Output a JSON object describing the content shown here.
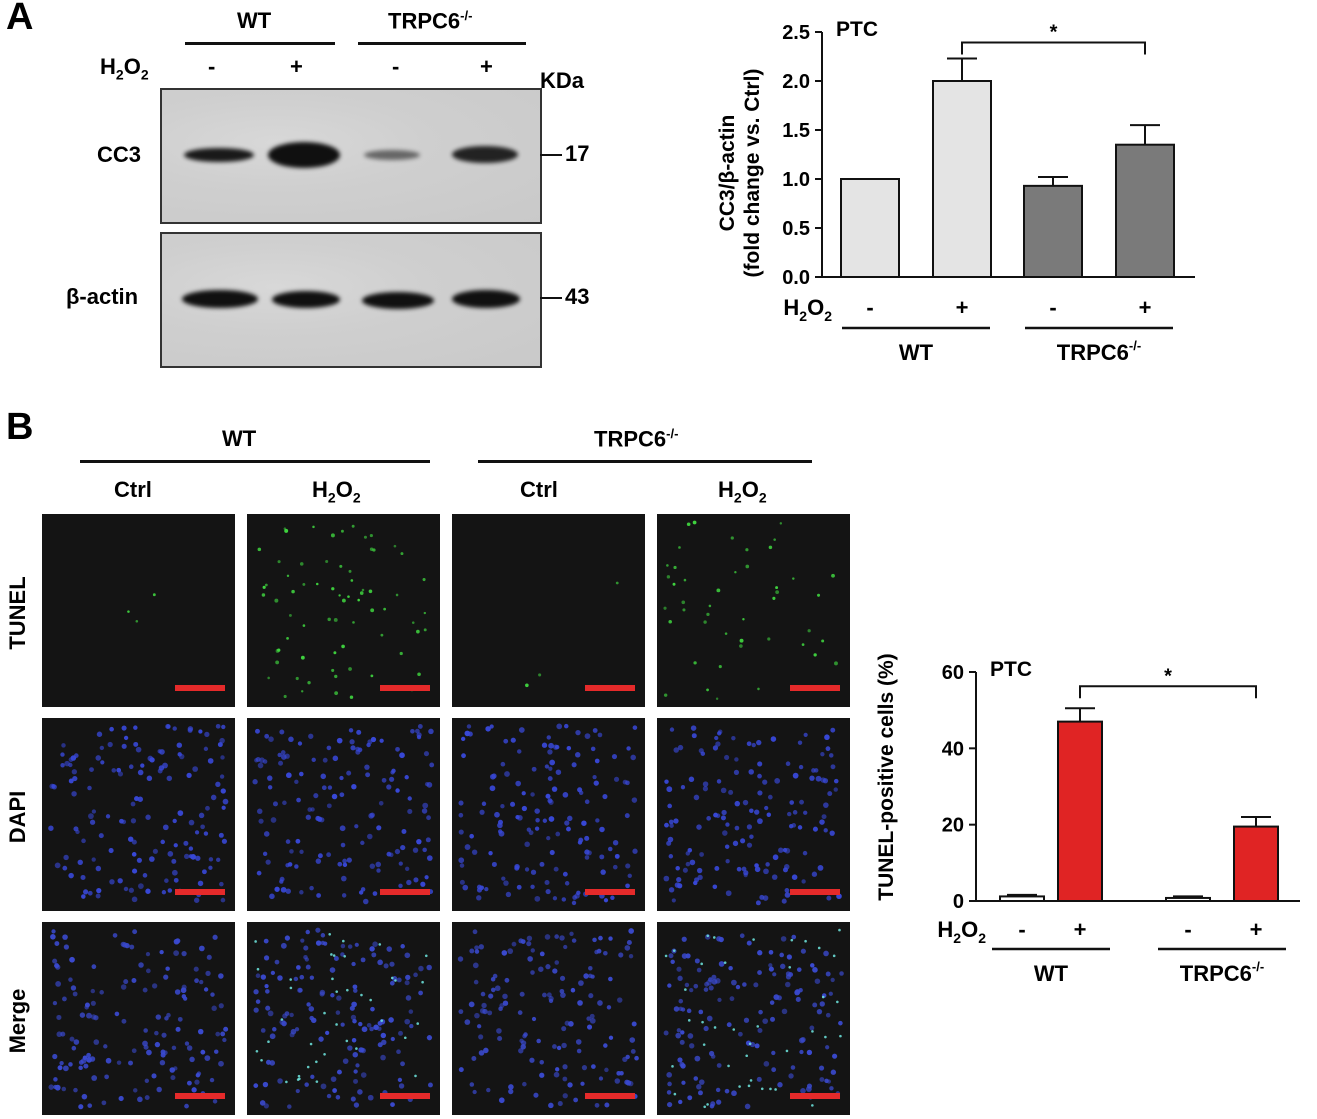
{
  "panel_a": {
    "letter": "A",
    "wt": "WT",
    "trpc6": "TRPC6",
    "ko_sup": "-/-",
    "h2o2_main": "H",
    "h2o2_sub1": "2",
    "h2o2_o": "O",
    "h2o2_sub2": "2",
    "lanes": [
      "-",
      "+",
      "-",
      "+"
    ],
    "kda": "KDa",
    "cc3": "CC3",
    "actin": "β-actin",
    "mw_cc3": "17",
    "mw_actin": "43"
  },
  "panel_b": {
    "letter": "B",
    "wt": "WT",
    "trpc6": "TRPC6",
    "ko_sup": "-/-",
    "ctrl": "Ctrl",
    "h2o2_main": "H",
    "h2o2_sub1": "2",
    "h2o2_o": "O",
    "h2o2_sub2": "2",
    "rows": [
      "TUNEL",
      "DAPI",
      "Merge"
    ]
  },
  "colors": {
    "bar_light": "#e4e4e4",
    "bar_dark": "#7a7a7a",
    "bar_red": "#e02424",
    "scale_red": "#e52a2a"
  },
  "chart_data": [
    {
      "type": "bar",
      "title": "PTC",
      "ylabel_line1": "CC3/β-actin",
      "ylabel_line2": "(fold change vs. Ctrl)",
      "ylim": [
        0,
        2.5
      ],
      "yticks": [
        "0.0",
        "0.5",
        "1.0",
        "1.5",
        "2.0",
        "2.5"
      ],
      "categories": [
        "-",
        "+",
        "-",
        "+"
      ],
      "groups": [
        "WT",
        "TRPC6"
      ],
      "group_sup": "-/-",
      "values": [
        1.0,
        2.0,
        0.93,
        1.35
      ],
      "errors": [
        0.0,
        0.23,
        0.09,
        0.2
      ],
      "significance": "*",
      "x_title": "H2O2"
    },
    {
      "type": "bar",
      "title": "PTC",
      "ylabel": "TUNEL-positive cells (%)",
      "ylim": [
        0,
        60
      ],
      "yticks": [
        "0",
        "20",
        "40",
        "60"
      ],
      "categories": [
        "-",
        "+",
        "-",
        "+"
      ],
      "groups": [
        "WT",
        "TRPC6"
      ],
      "group_sup": "-/-",
      "values": [
        1.2,
        47.0,
        0.8,
        19.5
      ],
      "errors": [
        0.4,
        3.5,
        0.4,
        2.5
      ],
      "significance": "*",
      "x_title": "H2O2"
    }
  ]
}
